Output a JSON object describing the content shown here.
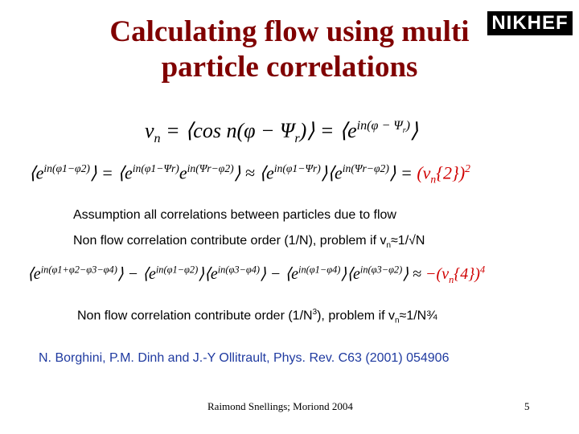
{
  "title": {
    "lines": [
      "Calculating flow using multi",
      "particle correlations"
    ]
  },
  "logo": {
    "text": "NIKHEF"
  },
  "equation_1": [
    "v",
    "n",
    " = ⟨cos n(φ − Ψ",
    "r",
    ")⟩ = ⟨e",
    "in(φ − Ψ",
    "r",
    ")",
    "⟩"
  ],
  "equation_2": [
    "⟨e",
    "in(φ1−φ2)",
    "⟩ = ⟨e",
    "in(φ1−Ψr)",
    "e",
    "in(Ψr−φ2)",
    "⟩ ≈ ⟨e",
    "in(φ1−Ψr)",
    "⟩⟨e",
    "in(Ψr−φ2)",
    "⟩ = ",
    "(v",
    "n",
    "{2})",
    "2"
  ],
  "text_1": "Assumption all correlations between particles due to flow",
  "text_2": [
    "Non flow correlation contribute order (1/N), problem if v",
    "n",
    "≈1/√N"
  ],
  "equation_3": [
    "⟨e",
    "in(φ1+φ2−φ3−φ4)",
    "⟩ − ⟨e",
    "in(φ1−φ2)",
    "⟩⟨e",
    "in(φ3−φ4)",
    "⟩ − ⟨e",
    "in(φ1−φ4)",
    "⟩⟨e",
    "in(φ3−φ2)",
    "⟩ ≈ ",
    "−(v",
    "n",
    "{4})",
    "4"
  ],
  "text_3": [
    "Non flow correlation contribute order (1/N",
    "3",
    "), problem if v",
    "n",
    "≈1/N",
    "¾"
  ],
  "reference": "N. Borghini, P.M. Dinh and J.-Y Ollitrault, Phys. Rev. C63 (2001) 054906",
  "footer": {
    "author": "Raimond Snellings; Moriond 2004",
    "page": "5"
  }
}
